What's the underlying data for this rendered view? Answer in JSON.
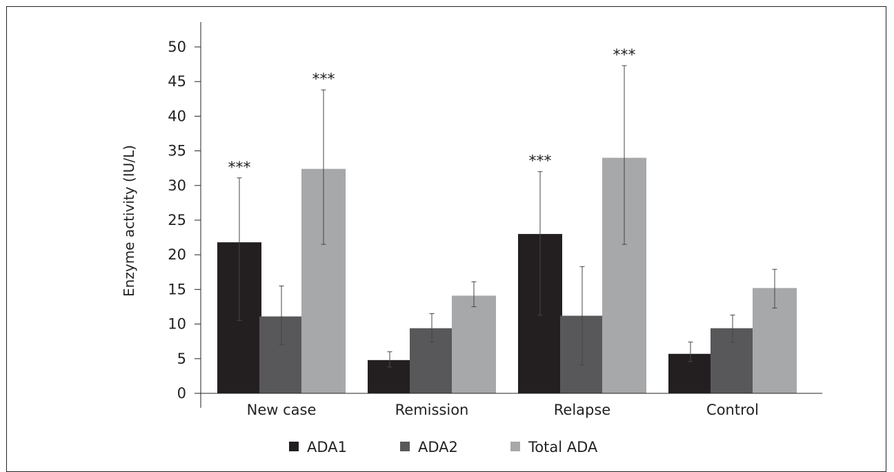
{
  "chart_data": {
    "type": "bar",
    "title": "",
    "xlabel": "",
    "ylabel": "Enzyme activity (IU/L)",
    "ylim": [
      0,
      50
    ],
    "yticks": [
      0,
      5,
      10,
      15,
      20,
      25,
      30,
      35,
      40,
      45,
      50
    ],
    "grid": false,
    "legend_position": "bottom",
    "categories": [
      "New case",
      "Remission",
      "Relapse",
      "Control"
    ],
    "series": [
      {
        "name": "ADA1",
        "color": "#231f20",
        "values": [
          21.8,
          4.8,
          23.0,
          5.7
        ],
        "error_low": [
          10.5,
          3.8,
          11.3,
          4.6
        ],
        "error_high": [
          31.1,
          6.0,
          32.0,
          7.4
        ],
        "annotations": [
          "***",
          "",
          "***",
          ""
        ]
      },
      {
        "name": "ADA2",
        "color": "#58585a",
        "values": [
          11.1,
          9.4,
          11.2,
          9.4
        ],
        "error_low": [
          7.0,
          7.4,
          4.1,
          7.4
        ],
        "error_high": [
          15.5,
          11.5,
          18.3,
          11.3
        ],
        "annotations": [
          "",
          "",
          "",
          ""
        ]
      },
      {
        "name": "Total ADA",
        "color": "#a7a8aa",
        "values": [
          32.4,
          14.1,
          34.0,
          15.2
        ],
        "error_low": [
          21.5,
          12.5,
          21.5,
          12.3
        ],
        "error_high": [
          43.8,
          16.1,
          47.3,
          17.9
        ],
        "annotations": [
          "***",
          "",
          "***",
          ""
        ]
      }
    ]
  }
}
